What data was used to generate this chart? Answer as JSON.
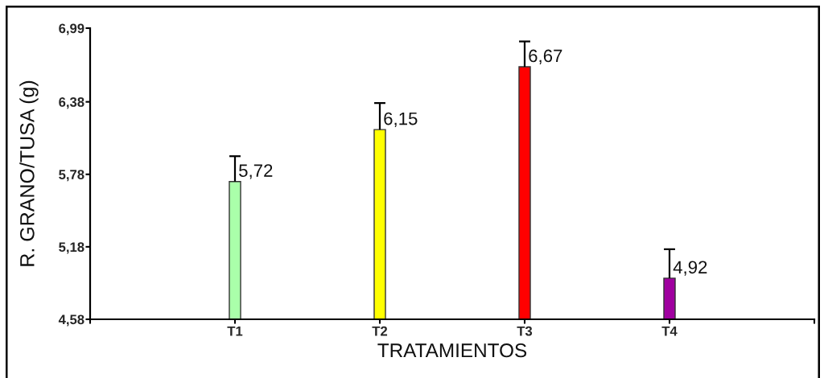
{
  "chart_data": {
    "type": "bar",
    "xlabel": "TRATAMIENTOS",
    "ylabel": "R. GRANO/TUSA (g)",
    "categories": [
      "T1",
      "T2",
      "T3",
      "T4"
    ],
    "values": [
      5.72,
      6.15,
      6.67,
      4.92
    ],
    "colors": [
      "#aaffaa",
      "#ffff00",
      "#ff0000",
      "#a000a0"
    ],
    "errors": [
      [
        5.72,
        5.93
      ],
      [
        6.15,
        6.37
      ],
      [
        6.67,
        6.88
      ],
      [
        4.92,
        5.16
      ]
    ],
    "value_labels": [
      "5,72",
      "6,15",
      "6,67",
      "4,92"
    ],
    "ylim": [
      4.58,
      6.99
    ],
    "yticks": [
      {
        "value": 4.58,
        "label": "4,58"
      },
      {
        "value": 5.18,
        "label": "5,18"
      },
      {
        "value": 5.78,
        "label": "5,78"
      },
      {
        "value": 6.38,
        "label": "6,38"
      },
      {
        "value": 6.99,
        "label": "6,99"
      }
    ]
  }
}
